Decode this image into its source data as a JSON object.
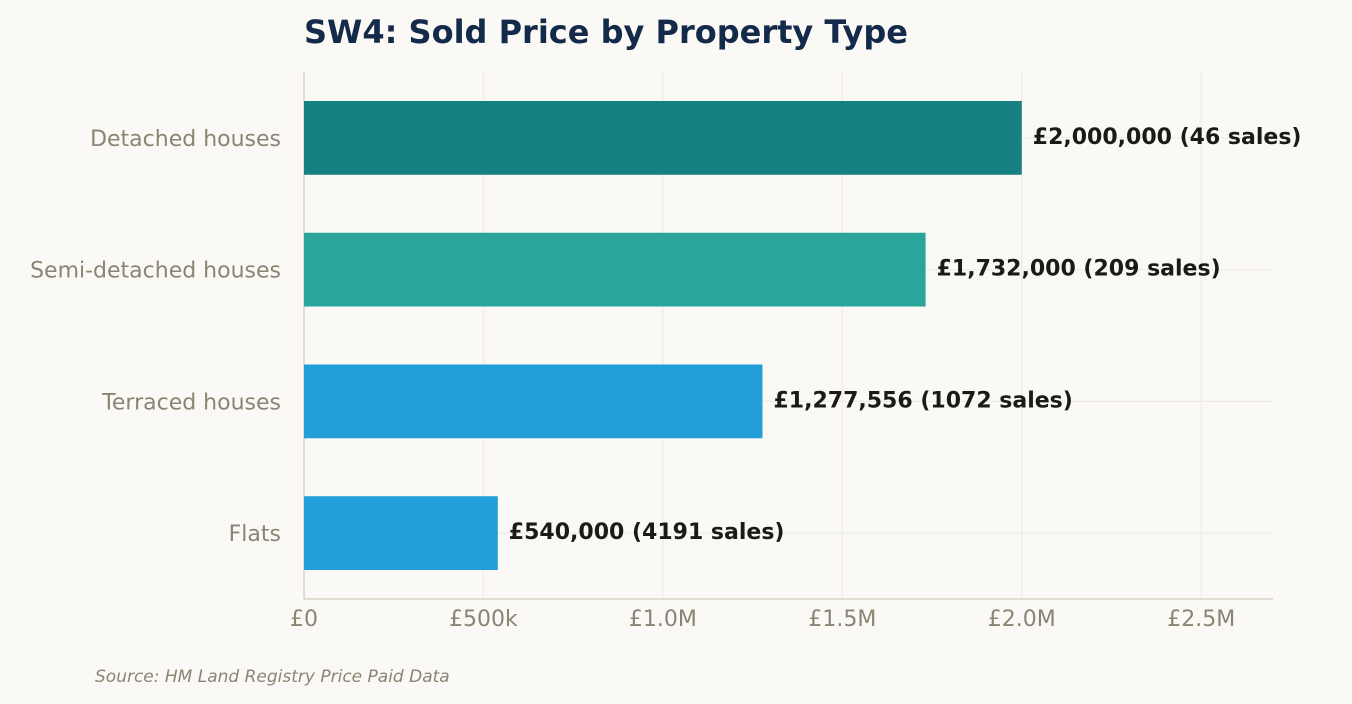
{
  "chart_data": {
    "type": "bar",
    "orientation": "horizontal",
    "title": "SW4: Sold Price by Property Type",
    "source": "Source: HM Land Registry Price Paid Data",
    "categories": [
      "Detached houses",
      "Semi-detached houses",
      "Terraced houses",
      "Flats"
    ],
    "values": [
      2000000,
      1732000,
      1277556,
      540000
    ],
    "data_labels": [
      "£2,000,000  (46 sales)",
      "£1,732,000  (209 sales)",
      "£1,277,556  (1072 sales)",
      "£540,000  (4191 sales)"
    ],
    "sales": [
      46,
      209,
      1072,
      4191
    ],
    "colors": [
      "#178080",
      "#2ba59c",
      "#229fd9",
      "#229fd9"
    ],
    "xlim": [
      0,
      2700000
    ],
    "x_ticks": [
      0,
      500000,
      1000000,
      1500000,
      2000000,
      2500000
    ],
    "x_tick_labels": [
      "£0",
      "£500k",
      "£1.0M",
      "£1.5M",
      "£2.0M",
      "£2.5M"
    ],
    "xlabel": "",
    "ylabel": "",
    "grid": true,
    "legend": "none"
  }
}
